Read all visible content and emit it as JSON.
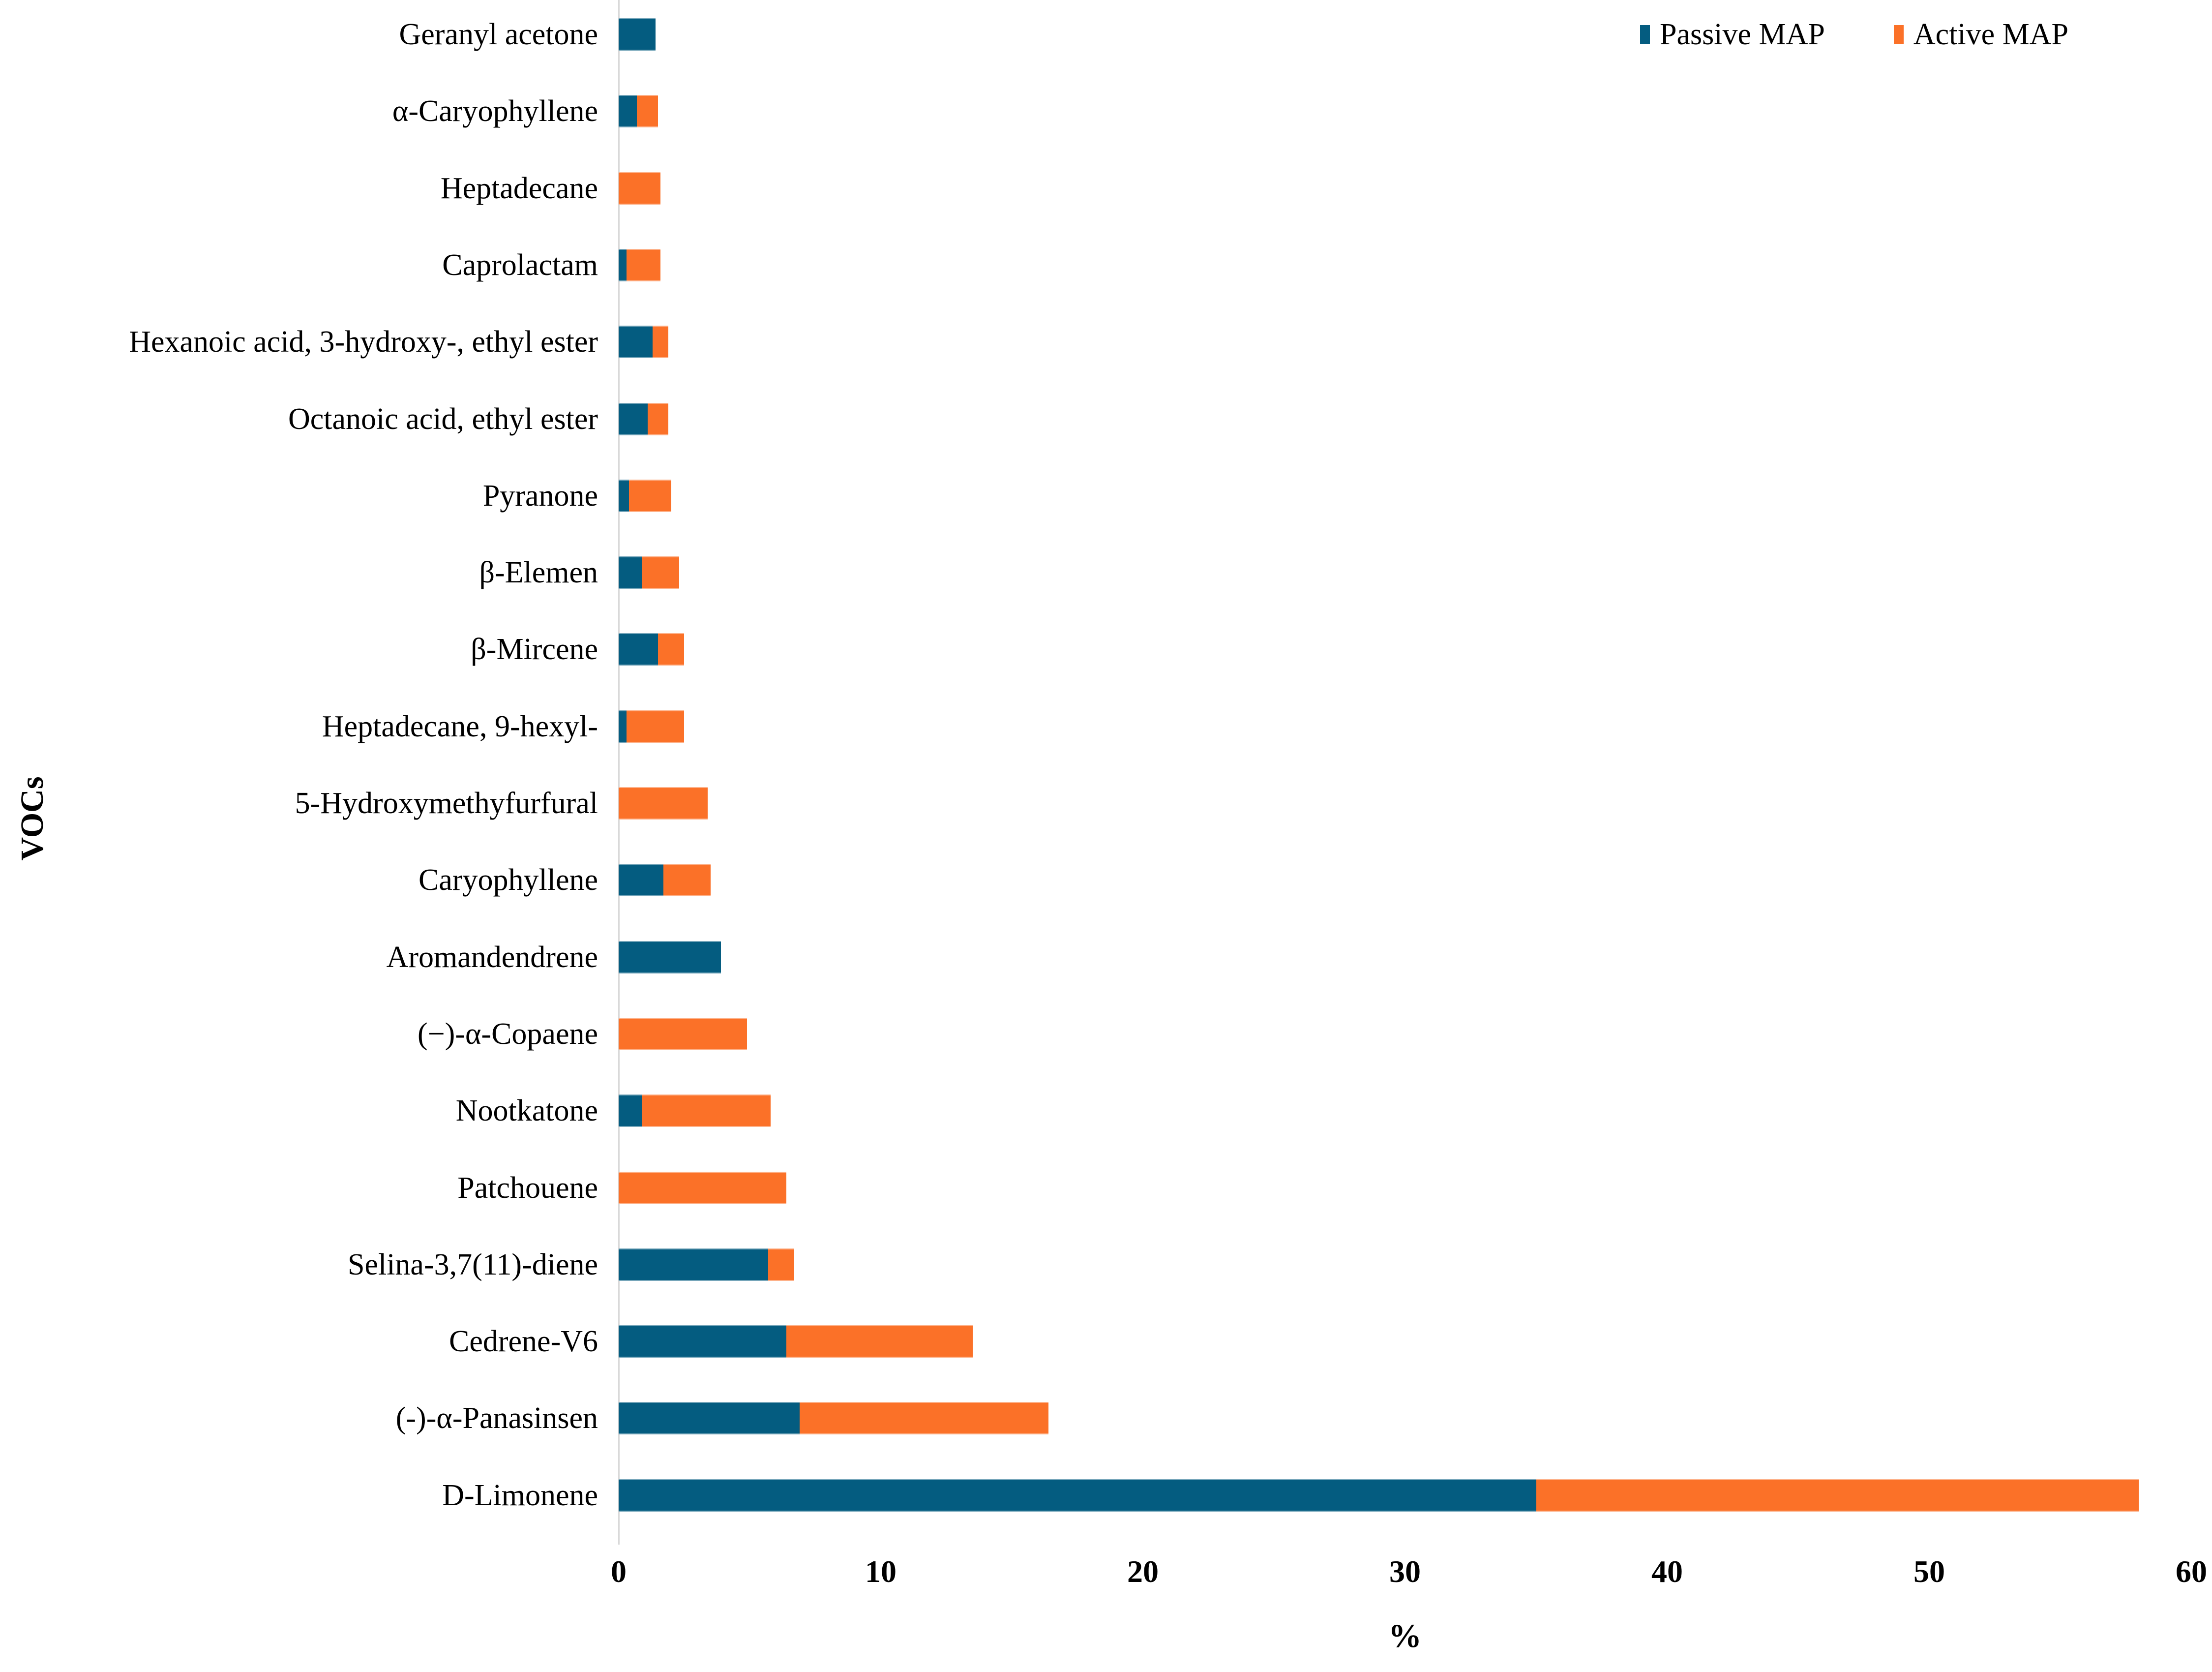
{
  "chart_data": {
    "type": "bar",
    "orientation": "horizontal",
    "stacked": true,
    "title": "",
    "xlabel": "%",
    "ylabel": "VOCs",
    "xlim": [
      0,
      60
    ],
    "xticks": [
      0,
      10,
      20,
      30,
      40,
      50,
      60
    ],
    "grid": false,
    "legend_position": "top-right",
    "categories": [
      "Geranyl acetone",
      "α-Caryophyllene",
      "Heptadecane",
      "Caprolactam",
      "Hexanoic acid, 3-hydroxy-, ethyl ester",
      "Octanoic acid, ethyl ester",
      "Pyranone",
      "β-Elemen",
      "β-Mircene",
      "Heptadecane, 9-hexyl-",
      "5-Hydroxymethyfurfural",
      "Caryophyllene",
      "Aromandendrene",
      "(−)-α-Copaene",
      "Nootkatone",
      "Patchouene",
      "Selina-3,7(11)-diene",
      "Cedrene-V6",
      "(-)-α-Panasinsen",
      "D-Limonene"
    ],
    "series": [
      {
        "name": "Passive MAP",
        "color": "#045C80",
        "values": [
          1.4,
          0.7,
          0,
          0.3,
          1.3,
          1.1,
          0.4,
          0.9,
          1.5,
          0.3,
          0,
          1.7,
          3.9,
          0,
          0.9,
          0,
          5.7,
          6.4,
          6.9,
          35.0
        ]
      },
      {
        "name": "Active MAP",
        "color": "#FB7128",
        "values": [
          0,
          0.8,
          1.6,
          1.3,
          0.6,
          0.8,
          1.6,
          1.4,
          1.0,
          2.2,
          3.4,
          1.8,
          0,
          4.9,
          4.9,
          6.4,
          1.0,
          7.1,
          9.5,
          23.0
        ]
      }
    ],
    "axis_line_color": "#d9d9d9",
    "text_color": "#000000"
  }
}
